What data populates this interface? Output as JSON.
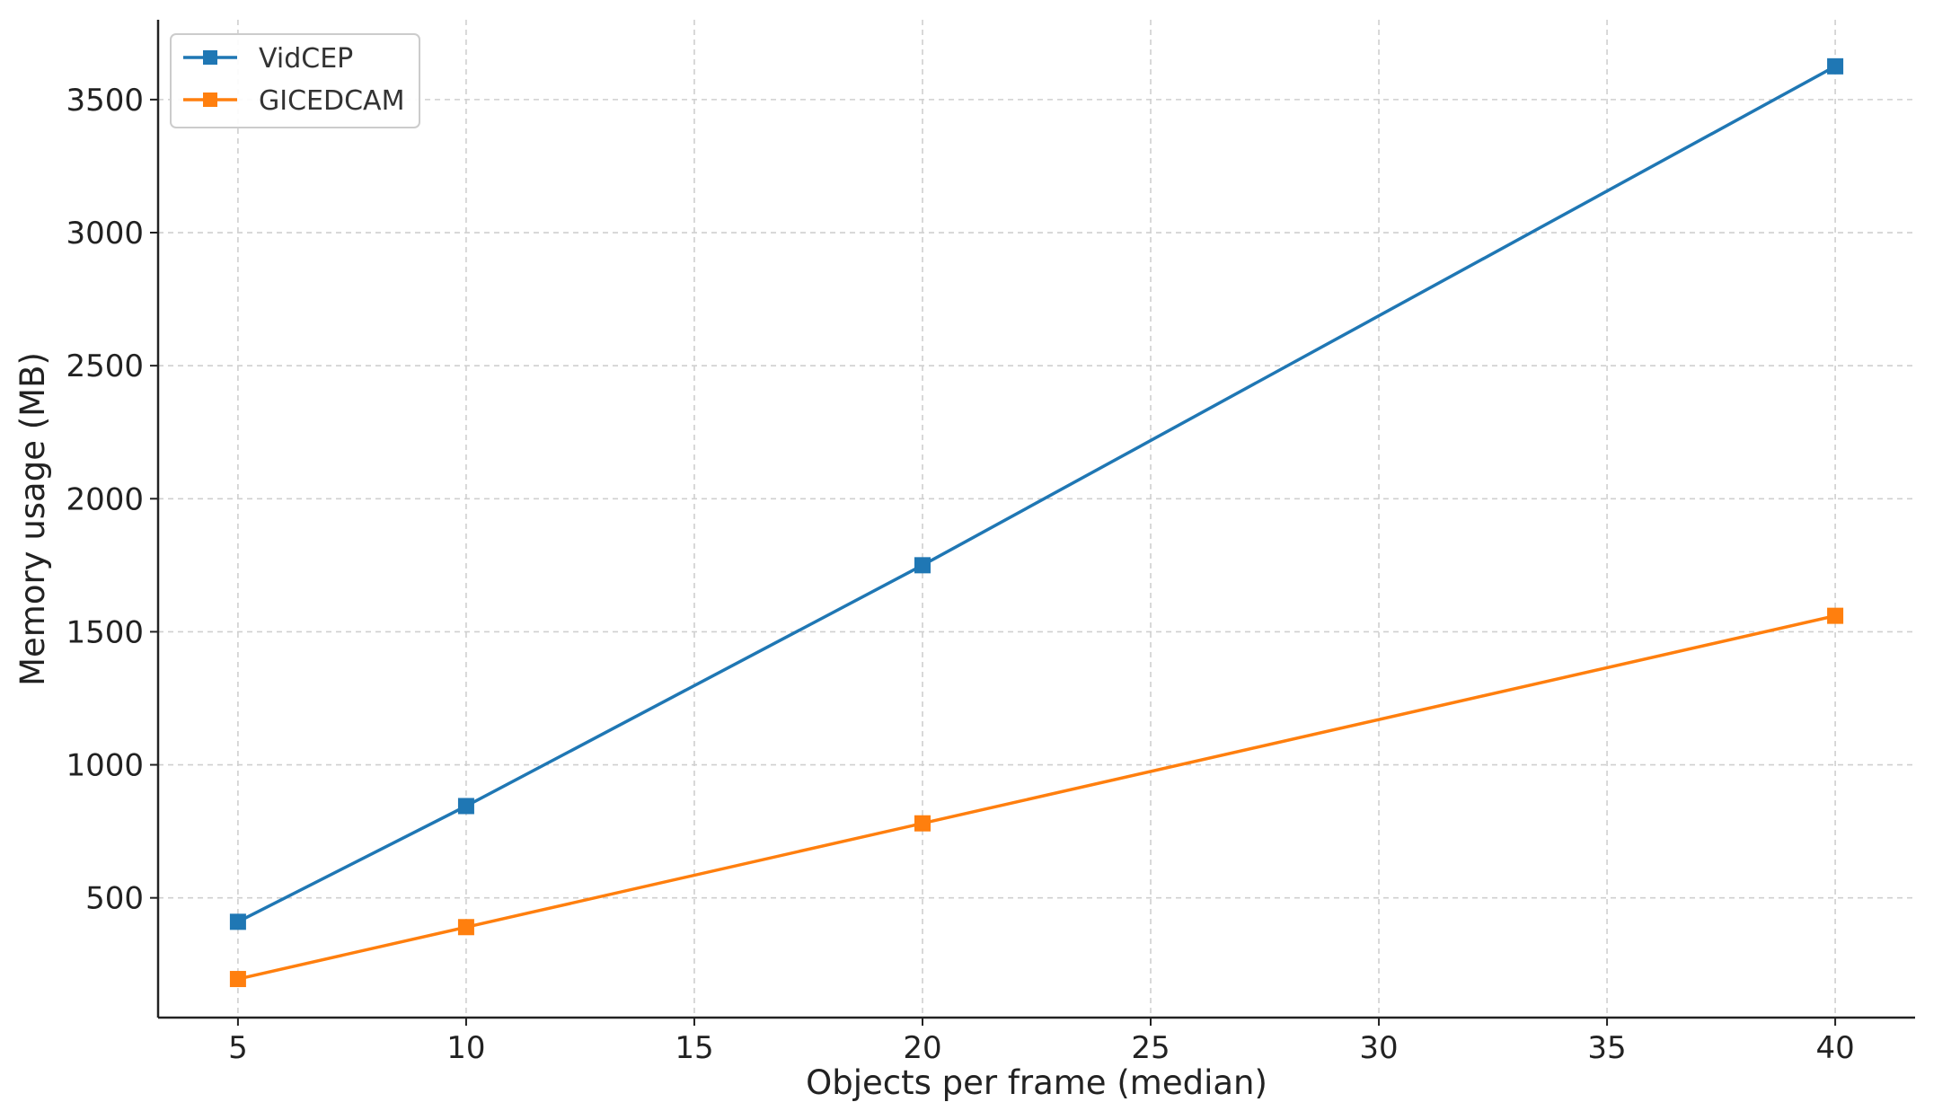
{
  "chart_data": {
    "type": "line",
    "title": "",
    "xlabel": "Objects per frame (median)",
    "ylabel": "Memory usage (MB)",
    "x": [
      5,
      10,
      20,
      40
    ],
    "xlim": [
      3.25,
      41.75
    ],
    "ylim": [
      50,
      3800
    ],
    "xticks": [
      5,
      10,
      15,
      20,
      25,
      30,
      35,
      40
    ],
    "yticks": [
      500,
      1000,
      1500,
      2000,
      2500,
      3000,
      3500
    ],
    "grid": true,
    "legend_position": "top-left",
    "marker": "square",
    "series": [
      {
        "name": "VidCEP",
        "color": "#1f77b4",
        "values": [
          410,
          845,
          1750,
          3625
        ]
      },
      {
        "name": "GICEDCAM",
        "color": "#ff7f0e",
        "values": [
          195,
          390,
          780,
          1560
        ]
      }
    ]
  }
}
